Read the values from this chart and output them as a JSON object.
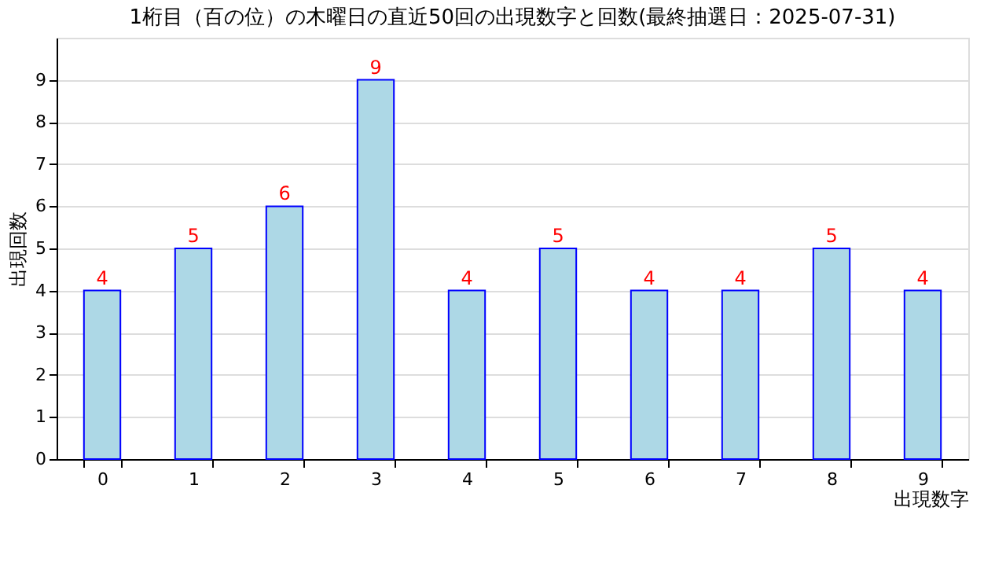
{
  "chart_data": {
    "type": "bar",
    "title": "1桁目（百の位）の木曜日の直近50回の出現数字と回数(最終抽選日：2025-07-31)",
    "xlabel": "出現数字",
    "ylabel": "出現回数",
    "categories": [
      "0",
      "1",
      "2",
      "3",
      "4",
      "5",
      "6",
      "7",
      "8",
      "9"
    ],
    "values": [
      4,
      5,
      6,
      9,
      4,
      5,
      4,
      4,
      5,
      4
    ],
    "color": "#add8e6",
    "ylim": [
      0,
      10
    ],
    "yticks": [
      0,
      1,
      2,
      3,
      4,
      5,
      6,
      7,
      8,
      9
    ],
    "grid": "y",
    "data_labels": true
  }
}
